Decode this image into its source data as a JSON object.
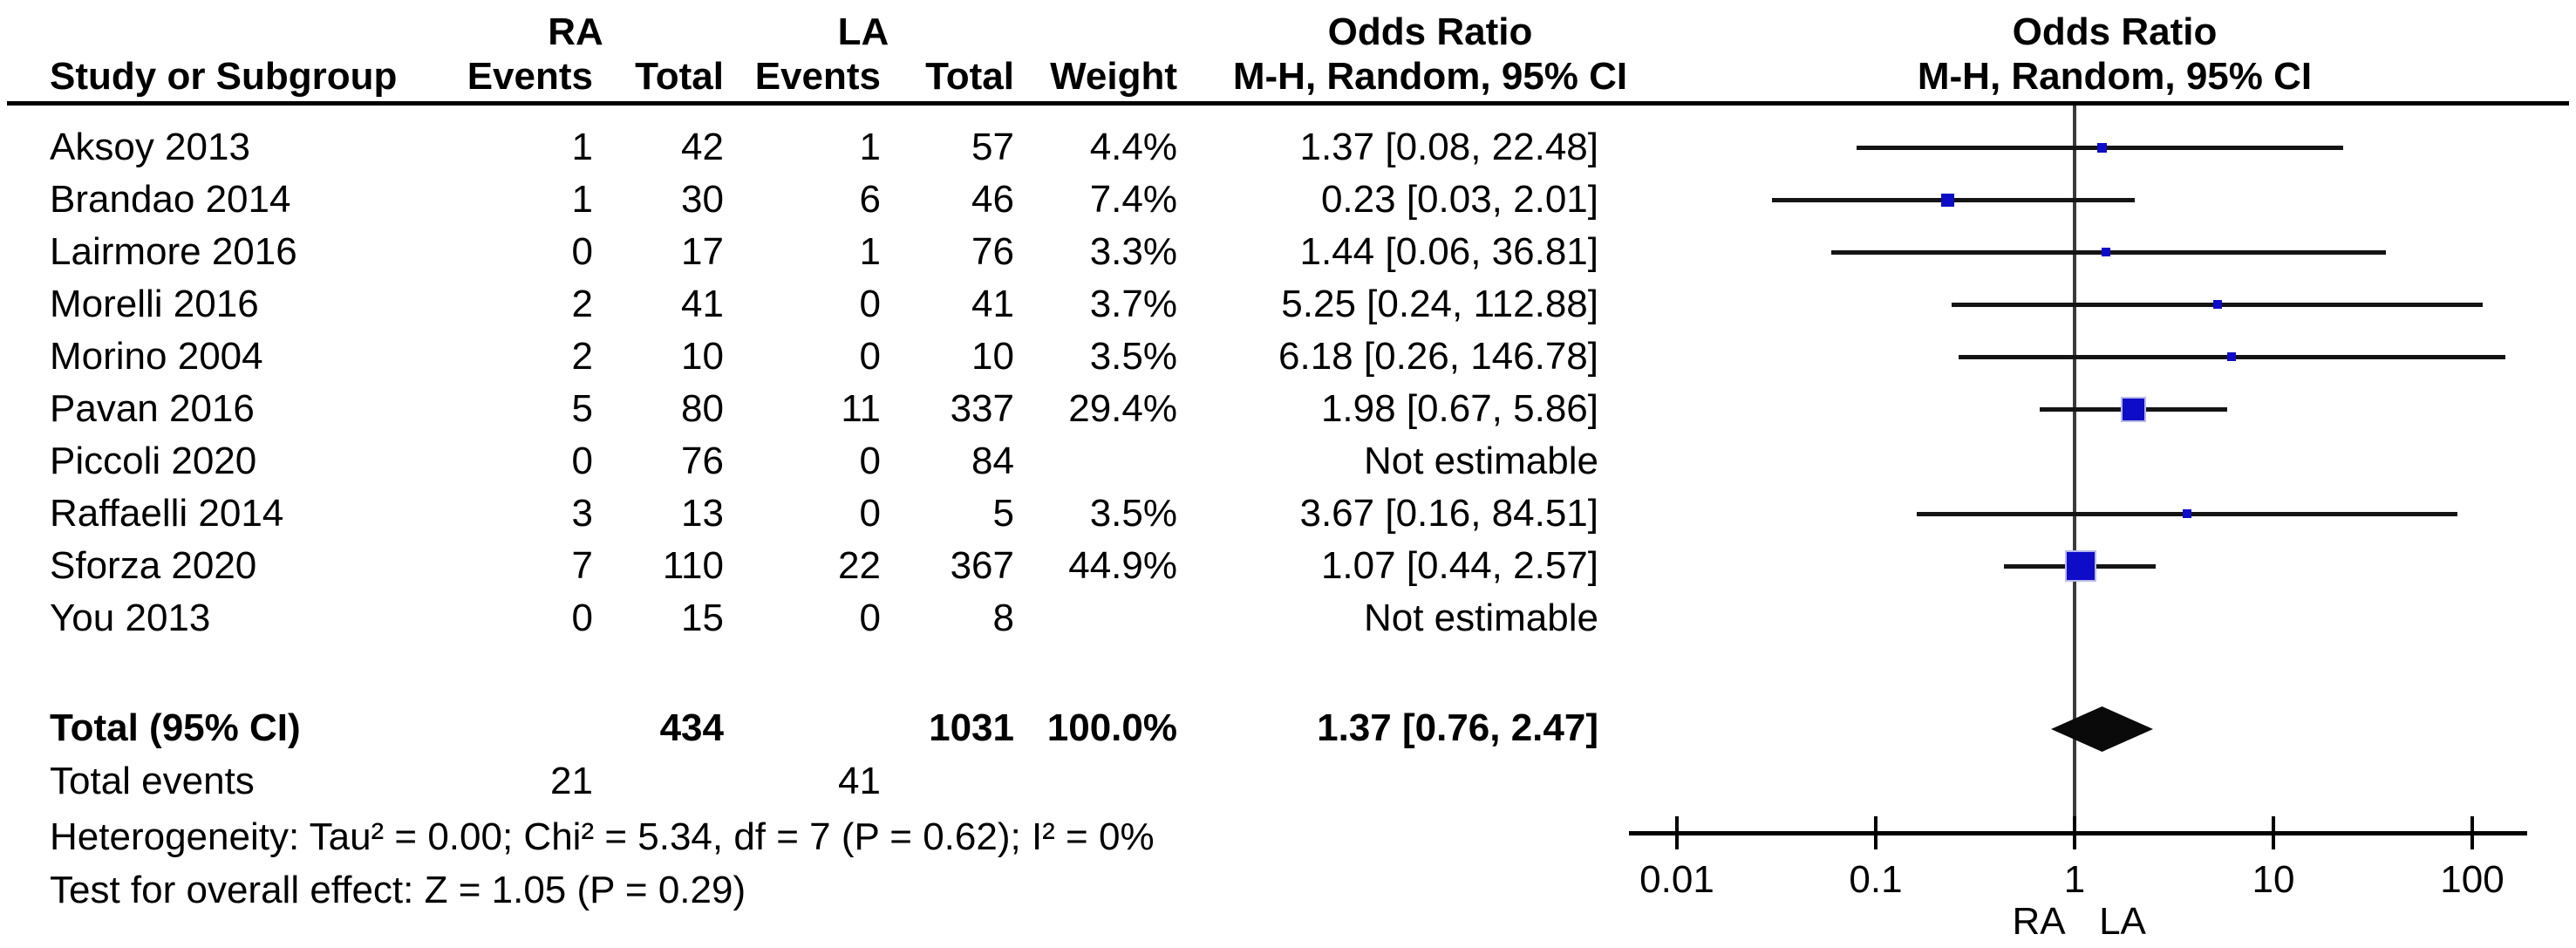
{
  "header": {
    "group_ra": "RA",
    "group_la": "LA",
    "odds_ratio_left": "Odds Ratio",
    "odds_ratio_right": "Odds Ratio",
    "col_study": "Study or Subgroup",
    "col_events_ra": "Events",
    "col_total_ra": "Total",
    "col_events_la": "Events",
    "col_total_la": "Total",
    "col_weight": "Weight",
    "col_mh_left": "M-H, Random, 95% CI",
    "col_mh_right": "M-H, Random, 95% CI"
  },
  "chart_data": {
    "type": "forest",
    "x_scale": "log10",
    "x_range": [
      0.01,
      100
    ],
    "axis": {
      "ticks": [
        "0.01",
        "0.1",
        "1",
        "10",
        "100"
      ],
      "tick_values": [
        0.01,
        0.1,
        1,
        10,
        100
      ],
      "favours_left": "RA",
      "favours_right": "LA"
    },
    "studies": [
      {
        "name": "Aksoy 2013",
        "ra_events": "1",
        "ra_total": "42",
        "la_events": "1",
        "la_total": "57",
        "weight": "4.4%",
        "or_text": "1.37 [0.08, 22.48]",
        "or": 1.37,
        "lo": 0.08,
        "hi": 22.48,
        "weight_pct": 4.4,
        "estimable": true
      },
      {
        "name": "Brandao 2014",
        "ra_events": "1",
        "ra_total": "30",
        "la_events": "6",
        "la_total": "46",
        "weight": "7.4%",
        "or_text": "0.23 [0.03, 2.01]",
        "or": 0.23,
        "lo": 0.03,
        "hi": 2.01,
        "weight_pct": 7.4,
        "estimable": true
      },
      {
        "name": "Lairmore 2016",
        "ra_events": "0",
        "ra_total": "17",
        "la_events": "1",
        "la_total": "76",
        "weight": "3.3%",
        "or_text": "1.44 [0.06, 36.81]",
        "or": 1.44,
        "lo": 0.06,
        "hi": 36.81,
        "weight_pct": 3.3,
        "estimable": true
      },
      {
        "name": "Morelli 2016",
        "ra_events": "2",
        "ra_total": "41",
        "la_events": "0",
        "la_total": "41",
        "weight": "3.7%",
        "or_text": "5.25 [0.24, 112.88]",
        "or": 5.25,
        "lo": 0.24,
        "hi": 112.88,
        "weight_pct": 3.7,
        "estimable": true
      },
      {
        "name": "Morino 2004",
        "ra_events": "2",
        "ra_total": "10",
        "la_events": "0",
        "la_total": "10",
        "weight": "3.5%",
        "or_text": "6.18 [0.26, 146.78]",
        "or": 6.18,
        "lo": 0.26,
        "hi": 146.78,
        "weight_pct": 3.5,
        "estimable": true
      },
      {
        "name": "Pavan 2016",
        "ra_events": "5",
        "ra_total": "80",
        "la_events": "11",
        "la_total": "337",
        "weight": "29.4%",
        "or_text": "1.98 [0.67, 5.86]",
        "or": 1.98,
        "lo": 0.67,
        "hi": 5.86,
        "weight_pct": 29.4,
        "estimable": true
      },
      {
        "name": "Piccoli 2020",
        "ra_events": "0",
        "ra_total": "76",
        "la_events": "0",
        "la_total": "84",
        "weight": "",
        "or_text": "Not estimable",
        "or": null,
        "lo": null,
        "hi": null,
        "weight_pct": 0,
        "estimable": false
      },
      {
        "name": "Raffaelli 2014",
        "ra_events": "3",
        "ra_total": "13",
        "la_events": "0",
        "la_total": "5",
        "weight": "3.5%",
        "or_text": "3.67 [0.16, 84.51]",
        "or": 3.67,
        "lo": 0.16,
        "hi": 84.51,
        "weight_pct": 3.5,
        "estimable": true
      },
      {
        "name": "Sforza 2020",
        "ra_events": "7",
        "ra_total": "110",
        "la_events": "22",
        "la_total": "367",
        "weight": "44.9%",
        "or_text": "1.07 [0.44, 2.57]",
        "or": 1.07,
        "lo": 0.44,
        "hi": 2.57,
        "weight_pct": 44.9,
        "estimable": true
      },
      {
        "name": "You 2013",
        "ra_events": "0",
        "ra_total": "15",
        "la_events": "0",
        "la_total": "8",
        "weight": "",
        "or_text": "Not estimable",
        "or": null,
        "lo": null,
        "hi": null,
        "weight_pct": 0,
        "estimable": false
      }
    ],
    "totals": {
      "label": "Total (95% CI)",
      "ra_total": "434",
      "la_total": "1031",
      "weight": "100.0%",
      "or_text": "1.37 [0.76, 2.47]",
      "or": 1.37,
      "lo": 0.76,
      "hi": 2.47
    },
    "total_events": {
      "label": "Total events",
      "ra": "21",
      "la": "41"
    },
    "footnotes": {
      "heterogeneity": "Heterogeneity: Tau² = 0.00; Chi² = 5.34, df = 7 (P = 0.62); I² = 0%",
      "overall_effect": "Test for overall effect: Z = 1.05 (P = 0.29)"
    },
    "colors": {
      "marker": "#0f0cc8",
      "marker_border": "#b9b9ea",
      "ci_line": "#141414",
      "diamond": "#0a0a0a",
      "axis": "#000000"
    }
  }
}
